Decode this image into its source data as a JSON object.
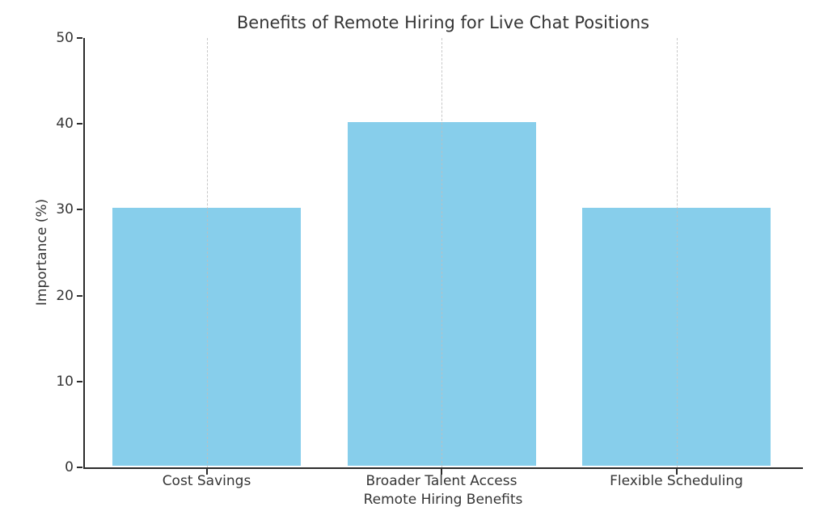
{
  "page": {
    "background_color": "#ffffff"
  },
  "chart_data": {
    "type": "bar",
    "title": "Benefits of Remote Hiring for Live Chat Positions",
    "categories": [
      "Cost Savings",
      "Broader Talent Access",
      "Flexible Scheduling"
    ],
    "values": [
      30,
      40,
      30
    ],
    "xlabel": "Remote Hiring Benefits",
    "ylabel": "Importance (%)",
    "ylim": [
      0,
      50
    ],
    "yticks": [
      0,
      10,
      20,
      30,
      40,
      50
    ],
    "bar_color": "#87CEEB",
    "grid": "vertical-dashed-at-categories",
    "grid_color": "#bebebe",
    "axis_color": "#2b2b2b",
    "text_color": "#353535",
    "legend": "none"
  }
}
